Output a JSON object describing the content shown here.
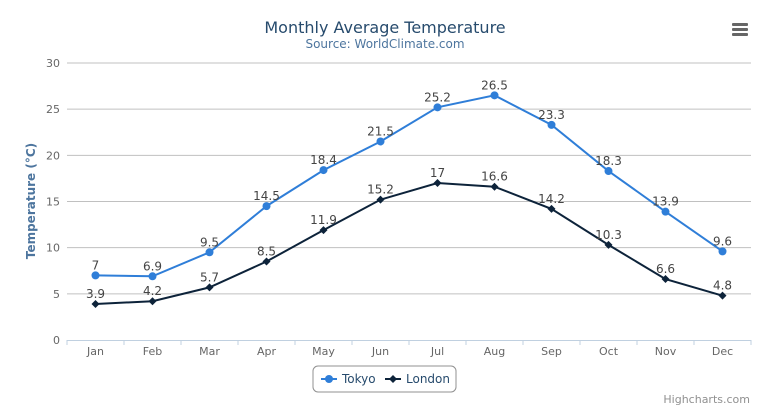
{
  "chart_data": {
    "type": "line",
    "title": "Monthly Average Temperature",
    "subtitle": "Source: WorldClimate.com",
    "ylabel": "Temperature (°C)",
    "xlabel": "",
    "ylim": [
      0,
      30
    ],
    "yticks": [
      "0",
      "5",
      "10",
      "15",
      "20",
      "25",
      "30"
    ],
    "categories": [
      "Jan",
      "Feb",
      "Mar",
      "Apr",
      "May",
      "Jun",
      "Jul",
      "Aug",
      "Sep",
      "Oct",
      "Nov",
      "Dec"
    ],
    "grid": true,
    "legend_position": "bottom-center",
    "data_labels": true,
    "series": [
      {
        "name": "Tokyo",
        "color": "#2f7ed8",
        "marker": "circle",
        "values": [
          7.0,
          6.9,
          9.5,
          14.5,
          18.4,
          21.5,
          25.2,
          26.5,
          23.3,
          18.3,
          13.9,
          9.6
        ]
      },
      {
        "name": "London",
        "color": "#0d233a",
        "marker": "diamond",
        "values": [
          3.9,
          4.2,
          5.7,
          8.5,
          11.9,
          15.2,
          17.0,
          16.6,
          14.2,
          10.3,
          6.6,
          4.8
        ]
      }
    ]
  },
  "credits": "Highcharts.com",
  "menu_icon": "hamburger-menu-icon"
}
